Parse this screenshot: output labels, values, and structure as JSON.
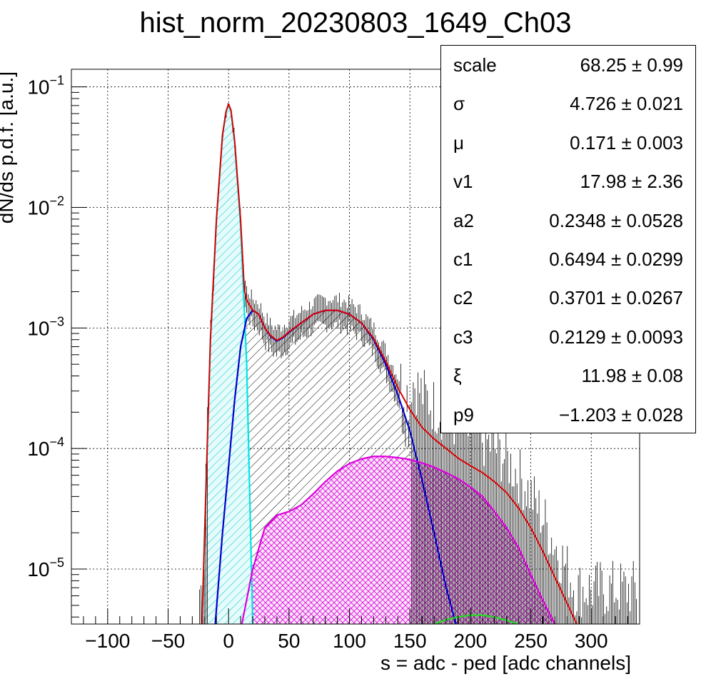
{
  "chart_data": {
    "type": "line",
    "title": "hist_norm_20230803_1649_Ch03",
    "xlabel": "s = adc - ped [adc channels]",
    "ylabel": "dN/ds p.d.f. [a.u.]",
    "xlim": [
      -130,
      340
    ],
    "ylim": [
      3.5e-06,
      0.14
    ],
    "yscale": "log",
    "grid": true,
    "x_ticks": [
      {
        "v": -100,
        "label": "−100"
      },
      {
        "v": -50,
        "label": "−50"
      },
      {
        "v": 0,
        "label": "0"
      },
      {
        "v": 50,
        "label": "50"
      },
      {
        "v": 100,
        "label": "100"
      },
      {
        "v": 150,
        "label": "150"
      },
      {
        "v": 200,
        "label": "200"
      },
      {
        "v": 250,
        "label": "250"
      },
      {
        "v": 300,
        "label": "300"
      }
    ],
    "y_ticks": [
      {
        "v": 1e-05,
        "base": "10",
        "exp": "−5"
      },
      {
        "v": 0.0001,
        "base": "10",
        "exp": "−4"
      },
      {
        "v": 0.001,
        "base": "10",
        "exp": "−3"
      },
      {
        "v": 0.01,
        "base": "10",
        "exp": "−2"
      },
      {
        "v": 0.1,
        "base": "10",
        "exp": "−1"
      }
    ],
    "series": [
      {
        "color": "#00e5e5",
        "x": [
          -22,
          -15,
          -10,
          -5,
          -2,
          0,
          2,
          5,
          10,
          15,
          20
        ],
        "values": [
          3.5e-06,
          0.0008,
          0.008,
          0.04,
          0.063,
          0.07,
          0.063,
          0.035,
          0.007,
          0.0005,
          3.5e-06
        ]
      },
      {
        "color": "#0000cc",
        "x": [
          -11,
          -5,
          0,
          5,
          10,
          15,
          20,
          25,
          30,
          35,
          40,
          45,
          50,
          60,
          70,
          80,
          90,
          100,
          110,
          120,
          130,
          140,
          150,
          160,
          170,
          180,
          188
        ],
        "values": [
          3.5e-06,
          2e-05,
          7e-05,
          0.00025,
          0.0007,
          0.0012,
          0.0014,
          0.0013,
          0.001,
          0.00085,
          0.00078,
          0.00083,
          0.00092,
          0.0011,
          0.0013,
          0.0014,
          0.0014,
          0.0013,
          0.0011,
          0.0008,
          0.0005,
          0.00028,
          0.00014,
          5.5e-05,
          2e-05,
          7e-06,
          3.5e-06
        ]
      },
      {
        "color": "#dd00dd",
        "x": [
          11,
          20,
          30,
          40,
          50,
          60,
          70,
          80,
          90,
          100,
          110,
          120,
          130,
          140,
          150,
          160,
          170,
          180,
          190,
          200,
          210,
          220,
          230,
          240,
          250,
          260,
          270
        ],
        "values": [
          3.5e-06,
          1e-05,
          2.2e-05,
          2.8e-05,
          3e-05,
          3.4e-05,
          4.2e-05,
          5.3e-05,
          6.5e-05,
          7.5e-05,
          8.2e-05,
          8.6e-05,
          8.6e-05,
          8.4e-05,
          8.1e-05,
          7.6e-05,
          7e-05,
          6.3e-05,
          5.6e-05,
          4.8e-05,
          4e-05,
          3e-05,
          2.2e-05,
          1.5e-05,
          9e-06,
          5.5e-06,
          3.5e-06
        ]
      },
      {
        "color": "#22dd22",
        "x": [
          170,
          180,
          190,
          200,
          210,
          220,
          230,
          240
        ],
        "values": [
          3.5e-06,
          3.8e-06,
          4e-06,
          4.15e-06,
          4.15e-06,
          4e-06,
          3.75e-06,
          3.5e-06
        ]
      },
      {
        "color": "#dd0000",
        "x": [
          -22,
          -15,
          -10,
          -5,
          -2,
          0,
          2,
          5,
          10,
          13,
          15,
          20,
          25,
          30,
          35,
          40,
          45,
          50,
          60,
          70,
          80,
          90,
          100,
          110,
          120,
          130,
          140,
          150,
          160,
          170,
          180,
          190,
          200,
          210,
          220,
          230,
          240,
          250,
          260,
          270,
          280,
          288
        ],
        "values": [
          3.5e-06,
          0.0008,
          0.008,
          0.04,
          0.063,
          0.072,
          0.064,
          0.036,
          0.0078,
          0.0021,
          0.0017,
          0.0014,
          0.0013,
          0.001,
          0.00086,
          0.00079,
          0.00084,
          0.00093,
          0.0011,
          0.0013,
          0.0014,
          0.0014,
          0.0013,
          0.0011,
          0.00082,
          0.00053,
          0.00032,
          0.00021,
          0.00015,
          0.00012,
          0.0001,
          8.3e-05,
          7.2e-05,
          6.3e-05,
          5.3e-05,
          4.3e-05,
          3.2e-05,
          2.2e-05,
          1.4e-05,
          8.5e-06,
          5.2e-06,
          3.5e-06
        ]
      }
    ]
  },
  "stats": {
    "rows": [
      {
        "name": "scale",
        "value": "68.25 ± 0.99"
      },
      {
        "name": "σ",
        "value": "4.726 ± 0.021"
      },
      {
        "name": "μ",
        "value": "0.171 ± 0.003"
      },
      {
        "name": "v1",
        "value": "17.98 ± 2.36"
      },
      {
        "name": "a2",
        "value": "0.2348 ± 0.0528"
      },
      {
        "name": "c1",
        "value": "0.6494 ± 0.0299"
      },
      {
        "name": "c2",
        "value": "0.3701 ± 0.0267"
      },
      {
        "name": "c3",
        "value": "0.2129 ± 0.0093"
      },
      {
        "name": "ξ",
        "value": "11.98 ± 0.08"
      },
      {
        "name": "p9",
        "value": "−1.203 ± 0.028"
      }
    ]
  },
  "colors": {
    "cyan": "#00e5e5",
    "blue": "#0000cc",
    "magenta": "#dd00dd",
    "green": "#22dd22",
    "red": "#dd0000",
    "data": "#000000"
  }
}
